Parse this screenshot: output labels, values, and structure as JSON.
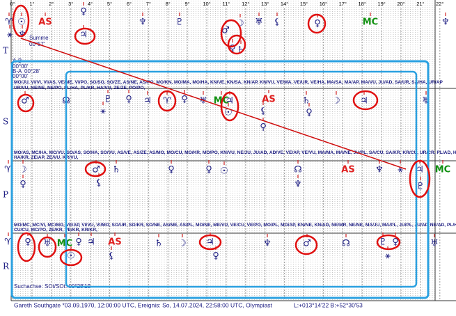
{
  "scale": {
    "labels": [
      "0°",
      "1°",
      "2°",
      "3°",
      "4°",
      "5°",
      "6°",
      "7°",
      "8°",
      "9°",
      "10°",
      "11°",
      "12°",
      "13°",
      "14°",
      "15°",
      "16°",
      "17°",
      "18°",
      "19°",
      "20°",
      "21°",
      "22°"
    ]
  },
  "header": {
    "summe_label": "Summe",
    "summe_value": "00°57'",
    "ab_label": "A-B",
    "ab_value": "00°00'",
    "ba_label": "B-A",
    "ba_value": "00°28'",
    "extra_value": "00°00'"
  },
  "rows": [
    {
      "label": "T",
      "glyphs": [
        "♈",
        "☉",
        {
          "symbol": "AS",
          "color": "#e02020"
        },
        "♀",
        "♆",
        "♇",
        "♂",
        "☽",
        "♅",
        "⚸",
        "♀",
        {
          "symbol": "MC",
          "color": "#109010"
        },
        "♆",
        "♃",
        "⚹",
        "♆",
        "♀",
        "♄"
      ]
    },
    {
      "label": "S",
      "combos": [
        "MO/JU, VI/VI, VI/AS, VE/ME, VI/PO, SO/SO, SO/ZE, AS/NE, AS/PO, MO/KN, MO/MA, MO/HA, KN/VE, KN/SA, KN/AP, KN/VU, VE/MA, VE/UR, VE/HA, MA/SA, MA/AP, MA/VU, JU/AD, SA/UR, SA/HA, UR/AP",
        "UR/VU, NE/NE, NE/PO, PL/HA, PL/KR, HA/VU, ZE/ZE, PO/PO,"
      ],
      "glyphs": [
        "♂",
        "☊",
        "♇",
        "♀",
        "♃",
        "♈",
        "♀",
        "♅",
        {
          "symbol": "MC",
          "color": "#109010"
        },
        "♃",
        {
          "symbol": "AS",
          "color": "#e02020"
        },
        "♄",
        "☽",
        "♃",
        "♅",
        "⚹",
        "☉",
        "⚸",
        "⚲",
        "♀"
      ]
    },
    {
      "label": "P",
      "combos": [
        "MO/AS, MC/HA, MC/VU, SO/AS, SO/HA, SO/VU, AS/VE, AS/ZE, AS/MO, MO/CU, MO/KR, MO/PO, KN/VU, NE/JU, JU/AD, AD/VE, VE/AP, VE/VU, MA/MA, MA/NE, JU/PL, SA/CU, SA/KR, KR/CU, UR/CR, PL/AD, HA/ZE,",
        "HA/KR, ZE/AP, ZE/VU, KR/VU,"
      ],
      "glyphs": [
        "♈",
        "☽",
        "♂",
        "♄",
        "♀",
        "♀",
        "☉",
        "☊",
        {
          "symbol": "AS",
          "color": "#e02020"
        },
        "♆",
        "⚹",
        "♃",
        {
          "symbol": "MC",
          "color": "#109010"
        },
        "♀",
        "⚸",
        "♆",
        "♇"
      ]
    },
    {
      "label": "R",
      "combos": [
        "MO/MC, MC/VI, MC/MO, VE/AP, VI/VU, VI/MO, SO/UR, SO/KR, SO/NE, AS/ME, AS/PL, MO/NE, ME/VU, VE/CU, VE/PO, MO/PL, MO/AP, KN/NE, KN/AD, NE/MR, NE/NE, MA/JU, MA/PL, JU/PL, JU/AP, NE/AD, PL/HA, PL/VU,",
        "CU/CU, MC/PO, ZE/KR, VE/KR, KR/KR,"
      ],
      "glyphs": [
        "♈",
        "♀",
        "♅",
        {
          "symbol": "MC",
          "color": "#109010"
        },
        "♀",
        "♃",
        {
          "symbol": "AS",
          "color": "#e02020"
        },
        "♄",
        "☽",
        "♃",
        "♆",
        "♂",
        "☊",
        "♇",
        "♀",
        "♅",
        "☉",
        "⚸",
        "♀",
        "⚹"
      ]
    }
  ],
  "search_axis": "Suchachse: SOt/SOt=00°28'19",
  "footer": {
    "person": "Gareth Southgate  *03.09.1970, 12:00:00 UTC, Ereignis: So, 14.07.2024, 22:58:00 UTC, Olympiast",
    "coords": "L:+013°14'22 B:+52°30'53"
  }
}
